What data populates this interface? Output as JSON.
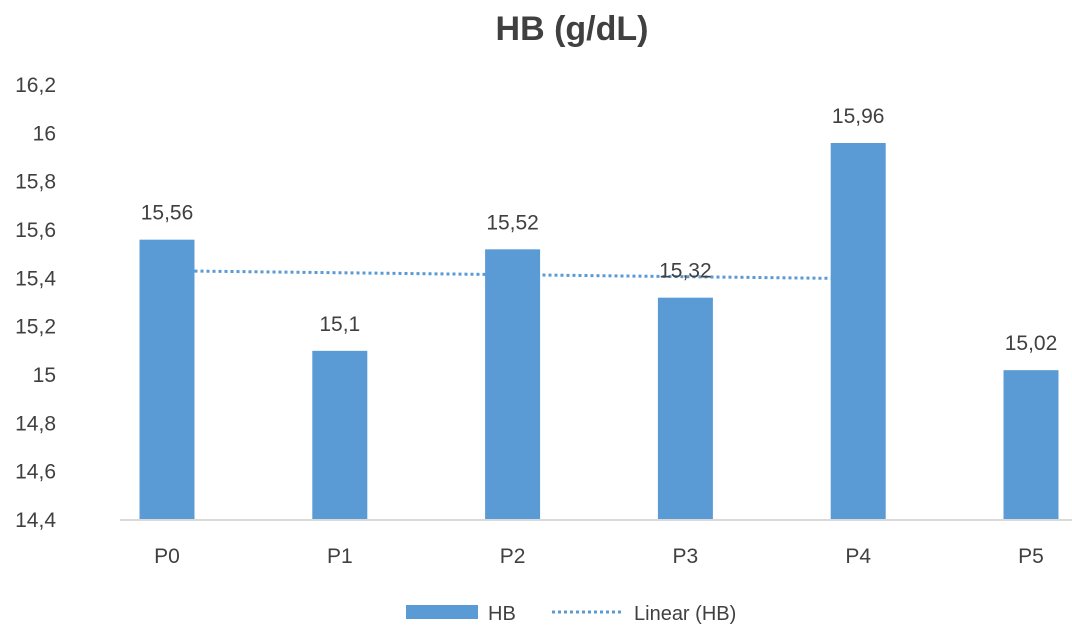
{
  "chart_data": {
    "type": "bar",
    "title": "HB (g/dL)",
    "xlabel": "",
    "ylabel": "",
    "categories": [
      "P0",
      "P1",
      "P2",
      "P3",
      "P4",
      "P5"
    ],
    "series": [
      {
        "name": "HB",
        "values": [
          15.56,
          15.1,
          15.52,
          15.32,
          15.96,
          15.02
        ],
        "value_labels": [
          "15,56",
          "15,1",
          "15,52",
          "15,32",
          "15,96",
          "15,02"
        ],
        "color": "#5B9BD5"
      }
    ],
    "trendline": {
      "name": "Linear (HB)",
      "type": "linear",
      "style": "dotted",
      "color": "#5B9BD5",
      "y_start": 15.43,
      "y_end": 15.4
    },
    "ylim": [
      14.4,
      16.2
    ],
    "ytick_values": [
      14.4,
      14.6,
      14.8,
      15,
      15.2,
      15.4,
      15.6,
      15.8,
      16,
      16.2
    ],
    "ytick_labels": [
      "14,4",
      "14,6",
      "14,8",
      "15",
      "15,2",
      "15,4",
      "15,6",
      "15,8",
      "16",
      "16,2"
    ],
    "grid": false,
    "legend": {
      "position": "bottom",
      "items": [
        {
          "label": "HB",
          "type": "bar"
        },
        {
          "label": "Linear (HB)",
          "type": "dotted-line"
        }
      ]
    },
    "colors": {
      "bar": "#5B9BD5",
      "trend": "#5B9BD5",
      "axis": "#D9D9D9",
      "text": "#404040"
    }
  }
}
